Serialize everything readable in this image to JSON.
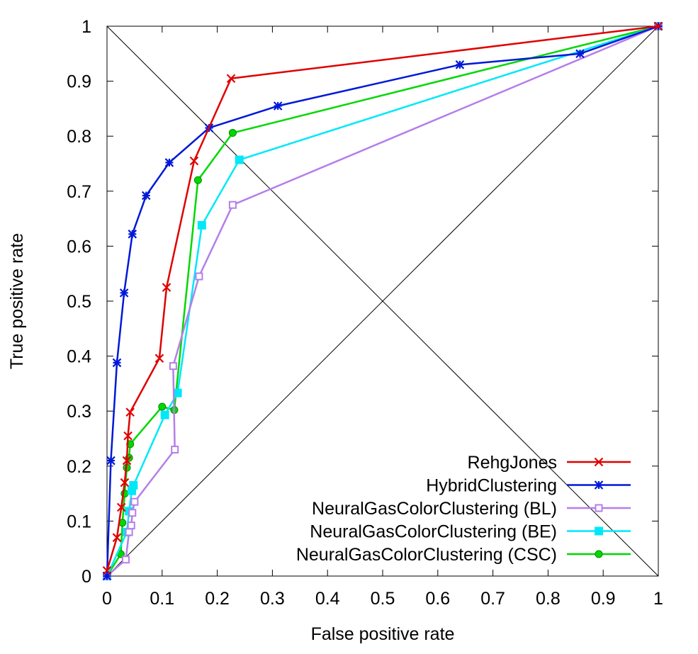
{
  "chart_data": {
    "type": "line",
    "title": "",
    "xlabel": "False positive rate",
    "ylabel": "True positive rate",
    "xlim": [
      0,
      1
    ],
    "ylim": [
      0,
      1
    ],
    "grid": false,
    "legend_position": "bottom-right",
    "x_ticks": [
      "0",
      "0.1",
      "0.2",
      "0.3",
      "0.4",
      "0.5",
      "0.6",
      "0.7",
      "0.8",
      "0.9",
      "1"
    ],
    "y_ticks": [
      "0",
      "0.1",
      "0.2",
      "0.3",
      "0.4",
      "0.5",
      "0.6",
      "0.7",
      "0.8",
      "0.9",
      "1"
    ],
    "reference_lines": [
      "diagonal",
      "anti-diagonal"
    ],
    "series": [
      {
        "name": "RehgJones",
        "color": "#e00000",
        "marker": "x",
        "points": [
          [
            0,
            0.01
          ],
          [
            0.018,
            0.07
          ],
          [
            0.026,
            0.125
          ],
          [
            0.032,
            0.17
          ],
          [
            0.036,
            0.21
          ],
          [
            0.038,
            0.255
          ],
          [
            0.042,
            0.298
          ],
          [
            0.095,
            0.396
          ],
          [
            0.108,
            0.525
          ],
          [
            0.158,
            0.755
          ],
          [
            0.225,
            0.905
          ],
          [
            1,
            1
          ]
        ]
      },
      {
        "name": "HybridClustering",
        "color": "#0018d8",
        "marker": "asterisk",
        "points": [
          [
            0,
            0
          ],
          [
            0.007,
            0.21
          ],
          [
            0.018,
            0.388
          ],
          [
            0.031,
            0.515
          ],
          [
            0.046,
            0.622
          ],
          [
            0.071,
            0.692
          ],
          [
            0.113,
            0.752
          ],
          [
            0.185,
            0.815
          ],
          [
            0.31,
            0.855
          ],
          [
            0.64,
            0.93
          ],
          [
            0.858,
            0.95
          ],
          [
            1,
            1
          ]
        ]
      },
      {
        "name": "NeuralGasColorClustering (BL)",
        "color": "#b47fe8",
        "marker": "open-square",
        "points": [
          [
            0,
            0
          ],
          [
            0.034,
            0.03
          ],
          [
            0.04,
            0.08
          ],
          [
            0.044,
            0.092
          ],
          [
            0.046,
            0.115
          ],
          [
            0.05,
            0.135
          ],
          [
            0.123,
            0.23
          ],
          [
            0.12,
            0.382
          ],
          [
            0.167,
            0.545
          ],
          [
            0.228,
            0.675
          ],
          [
            1,
            1
          ]
        ]
      },
      {
        "name": "NeuralGasColorClustering (BE)",
        "color": "#00e8f8",
        "marker": "filled-square",
        "points": [
          [
            0,
            0
          ],
          [
            0.036,
            0.08
          ],
          [
            0.04,
            0.118
          ],
          [
            0.045,
            0.155
          ],
          [
            0.048,
            0.165
          ],
          [
            0.105,
            0.293
          ],
          [
            0.128,
            0.333
          ],
          [
            0.172,
            0.638
          ],
          [
            0.24,
            0.757
          ],
          [
            1,
            1
          ]
        ]
      },
      {
        "name": "NeuralGasColorClustering (CSC)",
        "color": "#00d800",
        "marker": "filled-circle",
        "points": [
          [
            0,
            0
          ],
          [
            0.025,
            0.04
          ],
          [
            0.028,
            0.097
          ],
          [
            0.032,
            0.15
          ],
          [
            0.036,
            0.197
          ],
          [
            0.04,
            0.215
          ],
          [
            0.042,
            0.24
          ],
          [
            0.1,
            0.308
          ],
          [
            0.122,
            0.302
          ],
          [
            0.165,
            0.72
          ],
          [
            0.228,
            0.806
          ],
          [
            1,
            1
          ]
        ]
      }
    ]
  }
}
